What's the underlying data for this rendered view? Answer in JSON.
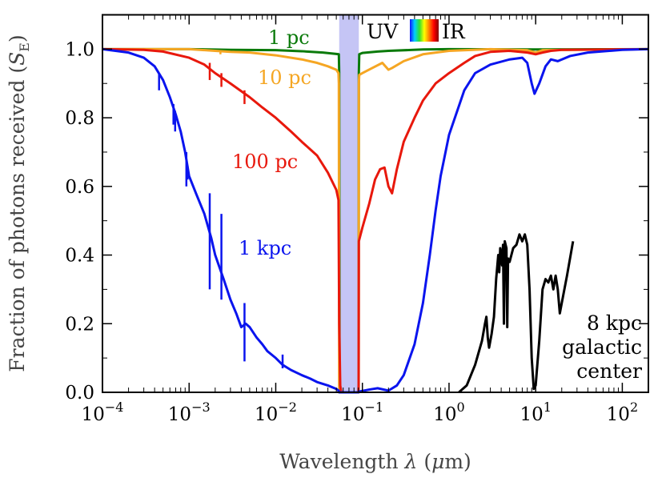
{
  "chart_data": {
    "type": "line",
    "xscale": "log",
    "xlabel": "Wavelength λ (μm)",
    "ylabel": "Fraction of photons received (S_E)",
    "ylabel_parts": {
      "main": "Fraction of photons received (",
      "symbol": "S",
      "subscript": "E",
      "close": ")"
    },
    "xlabel_parts": {
      "main": "Wavelength ",
      "lambda": "λ",
      "open": " (",
      "mu": "μ",
      "unit": "m)"
    },
    "xlim": [
      0.0001,
      200
    ],
    "ylim": [
      0.0,
      1.1
    ],
    "grid": false,
    "x_ticks": [
      {
        "value": 0.0001,
        "base": "10",
        "exp": "−4"
      },
      {
        "value": 0.001,
        "base": "10",
        "exp": "−3"
      },
      {
        "value": 0.01,
        "base": "10",
        "exp": "−2"
      },
      {
        "value": 0.1,
        "base": "10",
        "exp": "−1"
      },
      {
        "value": 1,
        "base": "10",
        "exp": "0"
      },
      {
        "value": 10,
        "base": "10",
        "exp": "1"
      },
      {
        "value": 100,
        "base": "10",
        "exp": "2"
      }
    ],
    "y_ticks": [
      {
        "value": 0.0,
        "label": "0.0"
      },
      {
        "value": 0.2,
        "label": "0.2"
      },
      {
        "value": 0.4,
        "label": "0.4"
      },
      {
        "value": 0.6,
        "label": "0.6"
      },
      {
        "value": 0.8,
        "label": "0.8"
      },
      {
        "value": 1.0,
        "label": "1.0"
      }
    ],
    "shaded_band": {
      "x": [
        0.054,
        0.091
      ],
      "color": "#c5c5f5",
      "label": ""
    },
    "uv_ir_legend": {
      "uv_label": "UV",
      "ir_label": "IR",
      "gradient": [
        "#1010ff",
        "#00d0ff",
        "#30e030",
        "#ffff00",
        "#ff8000",
        "#ff0000",
        "#800000"
      ]
    },
    "series": [
      {
        "name": "1 pc",
        "label": "1 pc",
        "color": "#0a7a0a",
        "points": [
          [
            0.0001,
            1.0
          ],
          [
            0.001,
            1.0
          ],
          [
            0.003,
            0.998
          ],
          [
            0.01,
            0.997
          ],
          [
            0.02,
            0.994
          ],
          [
            0.035,
            0.99
          ],
          [
            0.05,
            0.986
          ],
          [
            0.0535,
            0.985
          ],
          [
            0.054,
            0.93
          ],
          [
            0.0545,
            0.0
          ],
          [
            0.0905,
            0.0
          ],
          [
            0.091,
            0.93
          ],
          [
            0.092,
            0.985
          ],
          [
            0.1,
            0.989
          ],
          [
            0.15,
            0.993
          ],
          [
            0.2,
            0.995
          ],
          [
            0.5,
            0.999
          ],
          [
            1,
            1.0
          ],
          [
            10,
            0.999
          ],
          [
            200,
            1.0
          ]
        ]
      },
      {
        "name": "10 pc",
        "label": "10 pc",
        "color": "#f5a623",
        "points": [
          [
            0.0001,
            1.0
          ],
          [
            0.001,
            1.0
          ],
          [
            0.002,
            0.995
          ],
          [
            0.003,
            0.992
          ],
          [
            0.005,
            0.99
          ],
          [
            0.01,
            0.982
          ],
          [
            0.02,
            0.97
          ],
          [
            0.03,
            0.96
          ],
          [
            0.04,
            0.95
          ],
          [
            0.05,
            0.94
          ],
          [
            0.053,
            0.93
          ],
          [
            0.0535,
            0.9
          ],
          [
            0.054,
            0.0
          ],
          [
            0.0905,
            0.0
          ],
          [
            0.091,
            0.9
          ],
          [
            0.092,
            0.925
          ],
          [
            0.1,
            0.93
          ],
          [
            0.13,
            0.945
          ],
          [
            0.17,
            0.96
          ],
          [
            0.2,
            0.94
          ],
          [
            0.22,
            0.945
          ],
          [
            0.3,
            0.965
          ],
          [
            0.5,
            0.985
          ],
          [
            1,
            0.995
          ],
          [
            3,
            1.0
          ],
          [
            8,
            0.997
          ],
          [
            10,
            0.99
          ],
          [
            12,
            0.997
          ],
          [
            200,
            1.0
          ]
        ]
      },
      {
        "name": "100 pc",
        "label": "100 pc",
        "color": "#e8180c",
        "points": [
          [
            0.0001,
            1.0
          ],
          [
            0.0003,
            0.998
          ],
          [
            0.0005,
            0.993
          ],
          [
            0.001,
            0.975
          ],
          [
            0.0015,
            0.955
          ],
          [
            0.002,
            0.93
          ],
          [
            0.003,
            0.9
          ],
          [
            0.005,
            0.86
          ],
          [
            0.007,
            0.83
          ],
          [
            0.01,
            0.8
          ],
          [
            0.015,
            0.76
          ],
          [
            0.02,
            0.73
          ],
          [
            0.03,
            0.69
          ],
          [
            0.04,
            0.64
          ],
          [
            0.05,
            0.59
          ],
          [
            0.053,
            0.56
          ],
          [
            0.054,
            0.2
          ],
          [
            0.0555,
            0.02
          ],
          [
            0.057,
            0.0
          ],
          [
            0.09,
            0.0
          ],
          [
            0.0905,
            0.02
          ],
          [
            0.091,
            0.44
          ],
          [
            0.1,
            0.48
          ],
          [
            0.12,
            0.55
          ],
          [
            0.14,
            0.62
          ],
          [
            0.16,
            0.65
          ],
          [
            0.18,
            0.655
          ],
          [
            0.2,
            0.6
          ],
          [
            0.22,
            0.58
          ],
          [
            0.25,
            0.65
          ],
          [
            0.3,
            0.73
          ],
          [
            0.4,
            0.8
          ],
          [
            0.5,
            0.85
          ],
          [
            0.7,
            0.9
          ],
          [
            1,
            0.93
          ],
          [
            1.5,
            0.96
          ],
          [
            2,
            0.98
          ],
          [
            3,
            0.992
          ],
          [
            5,
            0.995
          ],
          [
            8,
            0.99
          ],
          [
            10,
            0.985
          ],
          [
            12,
            0.99
          ],
          [
            15,
            0.995
          ],
          [
            20,
            0.998
          ],
          [
            200,
            1.0
          ]
        ]
      },
      {
        "name": "1 kpc",
        "label": "1 kpc",
        "color": "#0a14ee",
        "points": [
          [
            0.0001,
            1.0
          ],
          [
            0.0002,
            0.99
          ],
          [
            0.0003,
            0.975
          ],
          [
            0.0004,
            0.95
          ],
          [
            0.0005,
            0.91
          ],
          [
            0.0006,
            0.86
          ],
          [
            0.0007,
            0.81
          ],
          [
            0.0008,
            0.76
          ],
          [
            0.0009,
            0.7
          ],
          [
            0.001,
            0.63
          ],
          [
            0.0012,
            0.58
          ],
          [
            0.0015,
            0.52
          ],
          [
            0.0018,
            0.45
          ],
          [
            0.002,
            0.4
          ],
          [
            0.0025,
            0.33
          ],
          [
            0.003,
            0.27
          ],
          [
            0.0035,
            0.23
          ],
          [
            0.004,
            0.19
          ],
          [
            0.0045,
            0.2
          ],
          [
            0.005,
            0.19
          ],
          [
            0.006,
            0.16
          ],
          [
            0.007,
            0.14
          ],
          [
            0.008,
            0.12
          ],
          [
            0.01,
            0.1
          ],
          [
            0.012,
            0.08
          ],
          [
            0.015,
            0.065
          ],
          [
            0.02,
            0.05
          ],
          [
            0.025,
            0.04
          ],
          [
            0.03,
            0.03
          ],
          [
            0.04,
            0.02
          ],
          [
            0.05,
            0.01
          ],
          [
            0.053,
            0.005
          ],
          [
            0.054,
            0.0
          ],
          [
            0.0905,
            0.0
          ],
          [
            0.091,
            0.002
          ],
          [
            0.12,
            0.008
          ],
          [
            0.15,
            0.012
          ],
          [
            0.2,
            0.005
          ],
          [
            0.25,
            0.02
          ],
          [
            0.3,
            0.05
          ],
          [
            0.4,
            0.14
          ],
          [
            0.5,
            0.26
          ],
          [
            0.6,
            0.4
          ],
          [
            0.7,
            0.53
          ],
          [
            0.8,
            0.63
          ],
          [
            1.0,
            0.75
          ],
          [
            1.5,
            0.88
          ],
          [
            2,
            0.93
          ],
          [
            3,
            0.955
          ],
          [
            5,
            0.97
          ],
          [
            7,
            0.975
          ],
          [
            8,
            0.96
          ],
          [
            9,
            0.9
          ],
          [
            9.7,
            0.87
          ],
          [
            11,
            0.9
          ],
          [
            13,
            0.95
          ],
          [
            15,
            0.97
          ],
          [
            18,
            0.965
          ],
          [
            25,
            0.98
          ],
          [
            40,
            0.99
          ],
          [
            100,
            0.998
          ],
          [
            200,
            1.0
          ]
        ]
      },
      {
        "name": "8 kpc galactic center",
        "label": "",
        "color": "#000000",
        "points": [
          [
            1.3,
            0.0
          ],
          [
            1.6,
            0.02
          ],
          [
            2.0,
            0.08
          ],
          [
            2.4,
            0.15
          ],
          [
            2.6,
            0.2
          ],
          [
            2.7,
            0.22
          ],
          [
            2.8,
            0.16
          ],
          [
            2.9,
            0.13
          ],
          [
            3.1,
            0.17
          ],
          [
            3.3,
            0.22
          ],
          [
            3.5,
            0.33
          ],
          [
            3.7,
            0.4
          ],
          [
            3.8,
            0.35
          ],
          [
            3.9,
            0.42
          ],
          [
            4.1,
            0.37
          ],
          [
            4.2,
            0.43
          ],
          [
            4.3,
            0.2
          ],
          [
            4.4,
            0.44
          ],
          [
            4.6,
            0.42
          ],
          [
            4.7,
            0.19
          ],
          [
            4.8,
            0.39
          ],
          [
            5.0,
            0.38
          ],
          [
            5.5,
            0.42
          ],
          [
            6.0,
            0.43
          ],
          [
            6.5,
            0.46
          ],
          [
            7.0,
            0.44
          ],
          [
            7.5,
            0.46
          ],
          [
            8.0,
            0.43
          ],
          [
            8.5,
            0.3
          ],
          [
            9.0,
            0.1
          ],
          [
            9.5,
            0.01
          ],
          [
            10.0,
            0.02
          ],
          [
            11.0,
            0.15
          ],
          [
            12.0,
            0.3
          ],
          [
            13.0,
            0.33
          ],
          [
            14.0,
            0.32
          ],
          [
            15.0,
            0.34
          ],
          [
            16.0,
            0.3
          ],
          [
            17.0,
            0.34
          ],
          [
            18.0,
            0.3
          ],
          [
            19.0,
            0.23
          ],
          [
            20.0,
            0.26
          ],
          [
            23.0,
            0.34
          ],
          [
            27.0,
            0.44
          ]
        ]
      }
    ],
    "spikes": [
      {
        "series": "1 kpc",
        "x": 0.00066,
        "y0": 0.78,
        "y1": 0.84
      },
      {
        "series": "1 kpc",
        "x": 0.00069,
        "y0": 0.76,
        "y1": 0.82
      },
      {
        "series": "1 kpc",
        "x": 0.00093,
        "y0": 0.6,
        "y1": 0.7
      },
      {
        "series": "1 kpc",
        "x": 0.00096,
        "y0": 0.62,
        "y1": 0.66
      },
      {
        "series": "1 kpc",
        "x": 0.00173,
        "y0": 0.3,
        "y1": 0.58
      },
      {
        "series": "1 kpc",
        "x": 0.00236,
        "y0": 0.27,
        "y1": 0.52
      },
      {
        "series": "1 kpc",
        "x": 0.00436,
        "y0": 0.09,
        "y1": 0.26
      },
      {
        "series": "1 kpc",
        "x": 0.00045,
        "y0": 0.88,
        "y1": 0.93
      },
      {
        "series": "1 kpc",
        "x": 0.012,
        "y0": 0.07,
        "y1": 0.11
      },
      {
        "series": "100 pc",
        "x": 0.00173,
        "y0": 0.91,
        "y1": 0.96
      },
      {
        "series": "100 pc",
        "x": 0.00236,
        "y0": 0.89,
        "y1": 0.93
      },
      {
        "series": "100 pc",
        "x": 0.00436,
        "y0": 0.84,
        "y1": 0.88
      },
      {
        "series": "10 pc",
        "x": 0.0023,
        "y0": 0.985,
        "y1": 0.997
      }
    ],
    "annotations": [
      {
        "text": "8 kpc",
        "series": "8 kpc galactic center"
      },
      {
        "text": "galactic",
        "series": "8 kpc galactic center"
      },
      {
        "text": "center",
        "series": "8 kpc galactic center"
      }
    ]
  }
}
